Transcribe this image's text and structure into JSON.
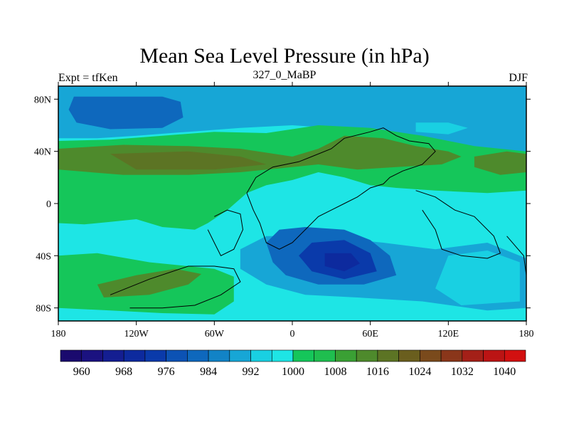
{
  "header": {
    "title": "Mean Sea Level Pressure (in hPa)",
    "left_string": "Expt = tfKen",
    "center_string": "327_0_MaBP",
    "right_string": "DJF"
  },
  "chart_data": {
    "type": "heatmap",
    "title": "Mean Sea Level Pressure (in hPa)",
    "xlabel": "",
    "ylabel": "",
    "projection": "cylindrical-equidistant",
    "xlim": [
      -180,
      180
    ],
    "ylim": [
      -90,
      90
    ],
    "x_ticks": [
      {
        "value": -180,
        "label": "180"
      },
      {
        "value": -120,
        "label": "120W"
      },
      {
        "value": -60,
        "label": "60W"
      },
      {
        "value": 0,
        "label": "0"
      },
      {
        "value": 60,
        "label": "60E"
      },
      {
        "value": 120,
        "label": "120E"
      },
      {
        "value": 180,
        "label": "180"
      }
    ],
    "y_ticks": [
      {
        "value": 80,
        "label": "80N"
      },
      {
        "value": 40,
        "label": "40N"
      },
      {
        "value": 0,
        "label": "0"
      },
      {
        "value": -40,
        "label": "40S"
      },
      {
        "value": -80,
        "label": "80S"
      }
    ],
    "contour_levels": [
      960,
      964,
      968,
      972,
      976,
      980,
      984,
      988,
      992,
      996,
      1000,
      1004,
      1008,
      1012,
      1016,
      1020,
      1024,
      1028,
      1032,
      1036,
      1040,
      1044
    ],
    "colorbar_labels": [
      {
        "value": 960,
        "label": "960"
      },
      {
        "value": 968,
        "label": "968"
      },
      {
        "value": 976,
        "label": "976"
      },
      {
        "value": 984,
        "label": "984"
      },
      {
        "value": 992,
        "label": "992"
      },
      {
        "value": 1000,
        "label": "1000"
      },
      {
        "value": 1008,
        "label": "1008"
      },
      {
        "value": 1016,
        "label": "1016"
      },
      {
        "value": 1024,
        "label": "1024"
      },
      {
        "value": 1032,
        "label": "1032"
      },
      {
        "value": 1040,
        "label": "1040"
      }
    ],
    "colorbar_colors": [
      "#1a0a6e",
      "#1b1280",
      "#141e91",
      "#0d2a9e",
      "#0a3aaa",
      "#0c52b4",
      "#0e68bd",
      "#1283c6",
      "#17a6d6",
      "#19d0e2",
      "#1ee5e5",
      "#15c65a",
      "#1fbe4f",
      "#3aa034",
      "#4e8a2c",
      "#5c7424",
      "#6a5e1e",
      "#7a4a1c",
      "#8a361a",
      "#a42018",
      "#bb1414",
      "#d21010"
    ],
    "field_regions": [
      {
        "name": "background",
        "value": 1004,
        "color": "#1ee5e5",
        "points": [
          [
            -180,
            90
          ],
          [
            180,
            90
          ],
          [
            180,
            -90
          ],
          [
            -180,
            -90
          ]
        ]
      },
      {
        "name": "north-band",
        "value": 996,
        "color": "#17a6d6",
        "points": [
          [
            -180,
            90
          ],
          [
            180,
            90
          ],
          [
            180,
            32
          ],
          [
            140,
            38
          ],
          [
            110,
            45
          ],
          [
            80,
            52
          ],
          [
            60,
            56
          ],
          [
            30,
            58
          ],
          [
            0,
            60
          ],
          [
            -40,
            58
          ],
          [
            -80,
            55
          ],
          [
            -120,
            52
          ],
          [
            -150,
            50
          ],
          [
            -180,
            50
          ]
        ]
      },
      {
        "name": "aleutian-low",
        "value": 986,
        "color": "#0e68bd",
        "points": [
          [
            -168,
            82
          ],
          [
            -100,
            82
          ],
          [
            -86,
            78
          ],
          [
            -84,
            66
          ],
          [
            -100,
            58
          ],
          [
            -140,
            57
          ],
          [
            -166,
            62
          ],
          [
            -172,
            72
          ]
        ]
      },
      {
        "name": "asian-low",
        "value": 996,
        "color": "#19d0e2",
        "points": [
          [
            95,
            62
          ],
          [
            120,
            62
          ],
          [
            135,
            58
          ],
          [
            120,
            53
          ],
          [
            95,
            55
          ]
        ]
      },
      {
        "name": "midlat-band",
        "value": 1010,
        "color": "#15c65a",
        "points": [
          [
            -180,
            48
          ],
          [
            -140,
            49
          ],
          [
            -100,
            52
          ],
          [
            -60,
            55
          ],
          [
            -20,
            54
          ],
          [
            20,
            60
          ],
          [
            60,
            58
          ],
          [
            100,
            52
          ],
          [
            140,
            44
          ],
          [
            180,
            40
          ],
          [
            180,
            10
          ],
          [
            150,
            8
          ],
          [
            110,
            10
          ],
          [
            80,
            12
          ],
          [
            60,
            14
          ],
          [
            40,
            20
          ],
          [
            20,
            24
          ],
          [
            0,
            18
          ],
          [
            -20,
            14
          ],
          [
            -35,
            8
          ],
          [
            -50,
            -5
          ],
          [
            -65,
            -15
          ],
          [
            -75,
            -20
          ],
          [
            -100,
            -18
          ],
          [
            -120,
            -12
          ],
          [
            -140,
            -14
          ],
          [
            -160,
            -16
          ],
          [
            -180,
            -15
          ]
        ]
      },
      {
        "name": "south-band",
        "value": 1010,
        "color": "#15c65a",
        "points": [
          [
            -180,
            -40
          ],
          [
            -150,
            -38
          ],
          [
            -110,
            -45
          ],
          [
            -80,
            -48
          ],
          [
            -60,
            -50
          ],
          [
            -45,
            -56
          ],
          [
            -45,
            -75
          ],
          [
            -60,
            -85
          ],
          [
            -100,
            -84
          ],
          [
            -140,
            -82
          ],
          [
            -180,
            -80
          ]
        ]
      },
      {
        "name": "north-high",
        "value": 1018,
        "color": "#4e8a2c",
        "points": [
          [
            -180,
            42
          ],
          [
            -130,
            45
          ],
          [
            -80,
            44
          ],
          [
            -40,
            42
          ],
          [
            0,
            36
          ],
          [
            20,
            42
          ],
          [
            40,
            52
          ],
          [
            70,
            50
          ],
          [
            95,
            44
          ],
          [
            120,
            40
          ],
          [
            130,
            36
          ],
          [
            115,
            30
          ],
          [
            80,
            28
          ],
          [
            50,
            26
          ],
          [
            20,
            30
          ],
          [
            0,
            28
          ],
          [
            -40,
            24
          ],
          [
            -80,
            22
          ],
          [
            -130,
            22
          ],
          [
            -180,
            26
          ]
        ]
      },
      {
        "name": "east-pacific-high",
        "value": 1018,
        "color": "#4e8a2c",
        "points": [
          [
            140,
            36
          ],
          [
            165,
            40
          ],
          [
            180,
            38
          ],
          [
            180,
            24
          ],
          [
            160,
            22
          ],
          [
            140,
            28
          ]
        ]
      },
      {
        "name": "central-north-high",
        "value": 1022,
        "color": "#5c7424",
        "points": [
          [
            -140,
            38
          ],
          [
            -80,
            40
          ],
          [
            -40,
            36
          ],
          [
            -20,
            30
          ],
          [
            -60,
            26
          ],
          [
            -120,
            26
          ]
        ]
      },
      {
        "name": "south-pacific-high",
        "value": 1018,
        "color": "#4e8a2c",
        "points": [
          [
            -150,
            -62
          ],
          [
            -120,
            -55
          ],
          [
            -90,
            -50
          ],
          [
            -70,
            -54
          ],
          [
            -80,
            -62
          ],
          [
            -110,
            -70
          ],
          [
            -145,
            -72
          ]
        ]
      },
      {
        "name": "south-low-1",
        "value": 994,
        "color": "#17a6d6",
        "points": [
          [
            -40,
            -35
          ],
          [
            -20,
            -25
          ],
          [
            20,
            -25
          ],
          [
            70,
            -30
          ],
          [
            110,
            -35
          ],
          [
            150,
            -30
          ],
          [
            180,
            -42
          ],
          [
            180,
            -80
          ],
          [
            150,
            -82
          ],
          [
            100,
            -75
          ],
          [
            50,
            -72
          ],
          [
            10,
            -70
          ],
          [
            -20,
            -62
          ],
          [
            -40,
            -50
          ]
        ]
      },
      {
        "name": "south-low-2",
        "value": 986,
        "color": "#0e68bd",
        "points": [
          [
            -10,
            -20
          ],
          [
            10,
            -18
          ],
          [
            40,
            -20
          ],
          [
            60,
            -28
          ],
          [
            75,
            -40
          ],
          [
            80,
            -55
          ],
          [
            55,
            -62
          ],
          [
            20,
            -62
          ],
          [
            -5,
            -55
          ],
          [
            -15,
            -45
          ],
          [
            -20,
            -30
          ]
        ]
      },
      {
        "name": "south-low-3",
        "value": 978,
        "color": "#0a3aaa",
        "points": [
          [
            15,
            -30
          ],
          [
            40,
            -28
          ],
          [
            60,
            -38
          ],
          [
            65,
            -52
          ],
          [
            40,
            -58
          ],
          [
            15,
            -52
          ],
          [
            5,
            -40
          ]
        ]
      },
      {
        "name": "south-low-core",
        "value": 970,
        "color": "#0d2a9e",
        "points": [
          [
            25,
            -38
          ],
          [
            45,
            -38
          ],
          [
            52,
            -46
          ],
          [
            40,
            -52
          ],
          [
            25,
            -48
          ]
        ]
      },
      {
        "name": "south-pacific-low",
        "value": 986,
        "color": "#0e68bd",
        "points": [
          [
            115,
            -58
          ],
          [
            140,
            -52
          ],
          [
            160,
            -48
          ],
          [
            170,
            -60
          ],
          [
            150,
            -70
          ],
          [
            125,
            -68
          ]
        ]
      },
      {
        "name": "low-south-ring",
        "value": 1000,
        "color": "#19d0e2",
        "points": [
          [
            120,
            -40
          ],
          [
            150,
            -36
          ],
          [
            175,
            -45
          ],
          [
            175,
            -75
          ],
          [
            130,
            -78
          ],
          [
            110,
            -65
          ]
        ]
      }
    ],
    "coastlines": [
      [
        [
          -35,
          8
        ],
        [
          -28,
          20
        ],
        [
          -15,
          28
        ],
        [
          5,
          32
        ],
        [
          15,
          36
        ],
        [
          30,
          42
        ],
        [
          40,
          50
        ],
        [
          60,
          55
        ],
        [
          70,
          58
        ],
        [
          80,
          52
        ],
        [
          90,
          48
        ],
        [
          105,
          46
        ],
        [
          110,
          40
        ],
        [
          100,
          30
        ],
        [
          85,
          25
        ],
        [
          75,
          20
        ],
        [
          70,
          15
        ],
        [
          60,
          12
        ],
        [
          50,
          5
        ],
        [
          40,
          0
        ],
        [
          30,
          -5
        ],
        [
          20,
          -10
        ],
        [
          10,
          -20
        ],
        [
          0,
          -30
        ],
        [
          -10,
          -35
        ],
        [
          -20,
          -30
        ],
        [
          -25,
          -15
        ],
        [
          -30,
          -5
        ],
        [
          -35,
          8
        ]
      ],
      [
        [
          -140,
          -70
        ],
        [
          -110,
          -58
        ],
        [
          -80,
          -48
        ],
        [
          -60,
          -48
        ],
        [
          -45,
          -50
        ],
        [
          -40,
          -60
        ],
        [
          -55,
          -70
        ],
        [
          -75,
          -78
        ],
        [
          -100,
          -80
        ],
        [
          -125,
          -80
        ]
      ],
      [
        [
          -60,
          -10
        ],
        [
          -50,
          -5
        ],
        [
          -40,
          -8
        ],
        [
          -38,
          -20
        ],
        [
          -45,
          -35
        ],
        [
          -55,
          -40
        ],
        [
          -60,
          -30
        ],
        [
          -65,
          -20
        ]
      ],
      [
        [
          95,
          10
        ],
        [
          110,
          5
        ],
        [
          125,
          -5
        ],
        [
          140,
          -10
        ],
        [
          155,
          -25
        ],
        [
          160,
          -38
        ],
        [
          150,
          -42
        ],
        [
          130,
          -40
        ],
        [
          115,
          -35
        ],
        [
          110,
          -20
        ],
        [
          100,
          -5
        ]
      ],
      [
        [
          165,
          -25
        ],
        [
          178,
          -40
        ],
        [
          180,
          -55
        ]
      ]
    ]
  }
}
